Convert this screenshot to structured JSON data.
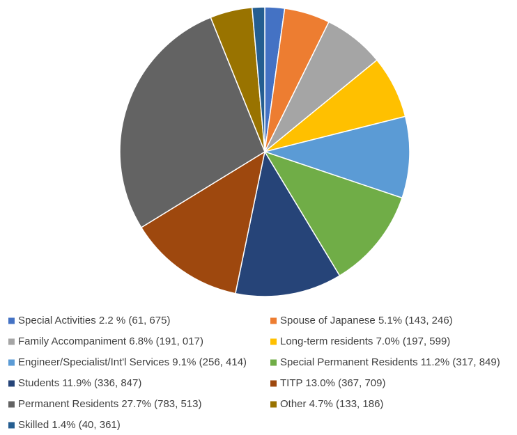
{
  "chart_data": {
    "type": "pie",
    "categories": [
      "Special Activities 2.2 % (61, 675)",
      "Spouse of Japanese 5.1% (143, 246)",
      "Family Accompaniment 6.8% (191, 017)",
      "Long-term residents 7.0% (197, 599)",
      "Engineer/Specialist/Int'l Services 9.1% (256, 414)",
      "Special Permanent Residents 11.2% (317, 849)",
      "Students 11.9% (336, 847)",
      "TITP 13.0% (367, 709)",
      "Permanent Residents 27.7% (783, 513)",
      "Other 4.7% (133, 186)",
      "Skilled 1.4% (40, 361)"
    ],
    "values": [
      2.2,
      5.1,
      6.8,
      7.0,
      9.1,
      11.2,
      11.9,
      13.0,
      27.7,
      4.7,
      1.4
    ],
    "colors": [
      "#4472c4",
      "#ed7d31",
      "#a5a5a5",
      "#ffc000",
      "#5b9bd5",
      "#70ad47",
      "#264478",
      "#9e480e",
      "#636363",
      "#997300",
      "#255e91"
    ],
    "legend": "bottom"
  }
}
